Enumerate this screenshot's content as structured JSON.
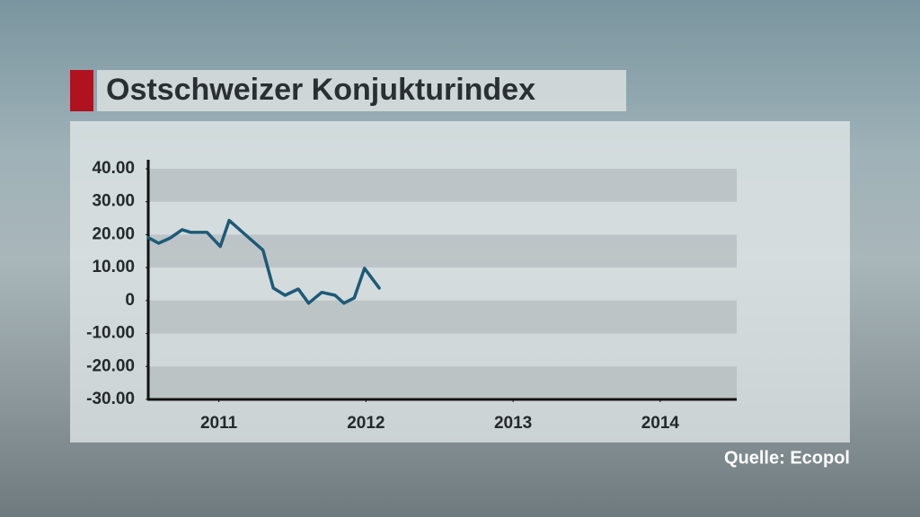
{
  "chart_data": {
    "type": "line",
    "title": "Ostschweizer Konjukturindex",
    "source": "Quelle: Ecopol",
    "x": [
      2010.52,
      2010.59,
      2010.67,
      2010.75,
      2010.81,
      2010.92,
      2011.01,
      2011.07,
      2011.17,
      2011.3,
      2011.37,
      2011.45,
      2011.54,
      2011.61,
      2011.7,
      2011.79,
      2011.85,
      2011.92,
      2011.99,
      2012.09
    ],
    "values": [
      19.1,
      17.4,
      19,
      21.5,
      20.7,
      20.7,
      16.4,
      24.3,
      20.4,
      15.3,
      3.8,
      1.6,
      3.5,
      -0.8,
      2.5,
      1.6,
      -0.8,
      0.8,
      9.8,
      3.8
    ],
    "color": "#1d5a78",
    "xlim": [
      2010.52,
      2014.52
    ],
    "xticks": [
      2011,
      2012,
      2013,
      2014
    ],
    "ylim": [
      -30,
      40
    ],
    "yticks": [
      {
        "value": 40,
        "label": "40.00"
      },
      {
        "value": 30,
        "label": "30.00"
      },
      {
        "value": 20,
        "label": "20.00"
      },
      {
        "value": 10,
        "label": "10.00"
      },
      0,
      {
        "value": -10,
        "label": "-10.00"
      },
      {
        "value": -20,
        "label": "-20.00"
      },
      {
        "value": -30,
        "label": "-30.00"
      }
    ]
  }
}
